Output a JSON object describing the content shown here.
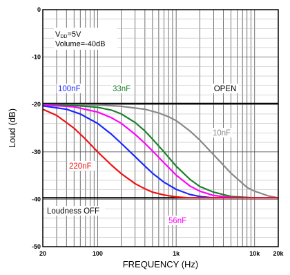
{
  "chart_data": {
    "type": "line",
    "xscale": "log",
    "xlim": [
      20,
      20000
    ],
    "ylim": [
      -50,
      0
    ],
    "grid": true,
    "xlabel": "FREQUENCY (Hz)",
    "ylabel": "Loud (dB)",
    "x_ticks": [
      {
        "value": 20,
        "label": "20"
      },
      {
        "value": 100,
        "label": "100"
      },
      {
        "value": 1000,
        "label": "1k"
      },
      {
        "value": 10000,
        "label": "10k"
      },
      {
        "value": 20000,
        "label": "20k"
      }
    ],
    "y_ticks": [
      {
        "value": 0,
        "label": "0"
      },
      {
        "value": -10,
        "label": "-10"
      },
      {
        "value": -20,
        "label": "-20"
      },
      {
        "value": -30,
        "label": "-30"
      },
      {
        "value": -40,
        "label": "-40"
      },
      {
        "value": -50,
        "label": "-50"
      }
    ],
    "annotation_lines": [
      {
        "prefix": "V",
        "subscript": "DD",
        "suffix": "=5V"
      },
      {
        "prefix": "Volume=-40dB",
        "subscript": "",
        "suffix": ""
      }
    ],
    "series": [
      {
        "name": "OPEN",
        "color": "#000000",
        "x": [
          20,
          100,
          1000,
          10000,
          20000
        ],
        "y": [
          -19.8,
          -19.8,
          -19.8,
          -19.8,
          -19.8
        ]
      },
      {
        "name": "Loudness OFF",
        "color": "#000000",
        "x": [
          20,
          100,
          1000,
          10000,
          20000
        ],
        "y": [
          -39.7,
          -39.7,
          -39.7,
          -39.7,
          -39.7
        ]
      },
      {
        "name": "10nF",
        "color": "#888888",
        "x": [
          20,
          100,
          200,
          400,
          600,
          800,
          1000,
          1500,
          2000,
          3000,
          5000,
          8000,
          10000,
          15000,
          20000
        ],
        "y": [
          -20.0,
          -20.1,
          -20.4,
          -21.0,
          -21.8,
          -22.6,
          -23.4,
          -25.6,
          -27.5,
          -30.6,
          -34.5,
          -37.5,
          -38.3,
          -39.3,
          -39.7
        ]
      },
      {
        "name": "33nF",
        "color": "#1a7f2a",
        "x": [
          20,
          50,
          100,
          150,
          200,
          300,
          400,
          500,
          700,
          1000,
          1500,
          2000,
          3000,
          5000,
          10000,
          20000
        ],
        "y": [
          -20.0,
          -20.2,
          -20.6,
          -21.2,
          -22.0,
          -23.8,
          -25.6,
          -27.3,
          -30.0,
          -33.0,
          -35.8,
          -37.3,
          -38.5,
          -39.4,
          -39.7,
          -39.7
        ]
      },
      {
        "name": "56nF",
        "color": "#ff00ff",
        "x": [
          20,
          50,
          100,
          150,
          200,
          300,
          400,
          500,
          700,
          1000,
          1500,
          2000,
          3000,
          5000,
          10000,
          20000
        ],
        "y": [
          -20.1,
          -20.5,
          -21.6,
          -22.8,
          -24.0,
          -26.3,
          -28.2,
          -29.8,
          -32.3,
          -34.9,
          -37.2,
          -38.3,
          -39.2,
          -39.6,
          -39.7,
          -39.7
        ]
      },
      {
        "name": "100nF",
        "color": "#1a28ff",
        "x": [
          20,
          40,
          60,
          100,
          150,
          200,
          300,
          400,
          500,
          700,
          1000,
          1500,
          2000,
          3000,
          5000,
          10000,
          20000
        ],
        "y": [
          -20.3,
          -21.0,
          -22.0,
          -24.0,
          -26.3,
          -28.2,
          -31.0,
          -33.0,
          -34.5,
          -36.4,
          -37.9,
          -39.0,
          -39.4,
          -39.7,
          -39.7,
          -39.7,
          -39.7
        ]
      },
      {
        "name": "220nF",
        "color": "#ee1111",
        "x": [
          20,
          30,
          50,
          70,
          100,
          150,
          200,
          300,
          400,
          500,
          700,
          1000,
          1500,
          2000,
          3000,
          5000,
          20000
        ],
        "y": [
          -21.0,
          -22.3,
          -25.0,
          -27.3,
          -30.0,
          -32.8,
          -34.6,
          -36.7,
          -37.8,
          -38.5,
          -39.1,
          -39.5,
          -39.7,
          -39.7,
          -39.7,
          -39.7,
          -39.7
        ]
      }
    ],
    "labels": [
      {
        "text": "100nF",
        "color": "#1a28ff"
      },
      {
        "text": "33nF",
        "color": "#1a7f2a"
      },
      {
        "text": "OPEN",
        "color": "#000000"
      },
      {
        "text": "10nF",
        "color": "#888888"
      },
      {
        "text": "220nF",
        "color": "#ee1111"
      },
      {
        "text": "Loudness OFF",
        "color": "#000000"
      },
      {
        "text": "56nF",
        "color": "#ff00ff"
      }
    ]
  }
}
